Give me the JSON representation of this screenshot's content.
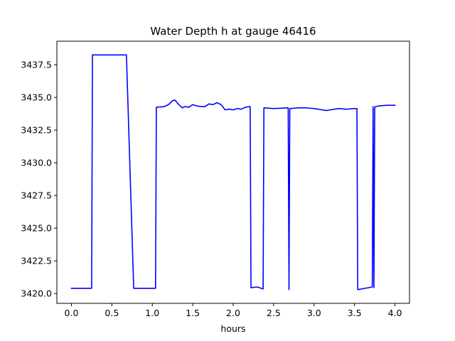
{
  "chart_data": {
    "type": "line",
    "title": "Water Depth h at gauge 46416",
    "xlabel": "hours",
    "ylabel": "",
    "xlim": [
      -0.18,
      4.18
    ],
    "ylim": [
      3419.25,
      3439.3
    ],
    "xticks": [
      0.0,
      0.5,
      1.0,
      1.5,
      2.0,
      2.5,
      3.0,
      3.5,
      4.0
    ],
    "xtick_labels": [
      "0.0",
      "0.5",
      "1.0",
      "1.5",
      "2.0",
      "2.5",
      "3.0",
      "3.5",
      "4.0"
    ],
    "yticks": [
      3420.0,
      3422.5,
      3425.0,
      3427.5,
      3430.0,
      3432.5,
      3435.0,
      3437.5
    ],
    "ytick_labels": [
      "3420.0",
      "3422.5",
      "3425.0",
      "3427.5",
      "3430.0",
      "3432.5",
      "3435.0",
      "3437.5"
    ],
    "grid": false,
    "legend": "none",
    "series": [
      {
        "color": "#0000ff",
        "x": [
          0.0,
          0.25,
          0.26,
          0.68,
          0.77,
          1.04,
          1.05,
          1.15,
          1.2,
          1.25,
          1.28,
          1.32,
          1.37,
          1.4,
          1.45,
          1.5,
          1.55,
          1.6,
          1.65,
          1.7,
          1.75,
          1.8,
          1.85,
          1.9,
          1.95,
          2.0,
          2.05,
          2.1,
          2.15,
          2.21,
          2.22,
          2.3,
          2.37,
          2.38,
          2.5,
          2.68,
          2.69,
          2.7,
          2.8,
          2.9,
          3.0,
          3.1,
          3.15,
          3.2,
          3.3,
          3.4,
          3.5,
          3.53,
          3.54,
          3.72,
          3.73,
          3.74,
          3.75,
          3.76,
          3.8,
          3.9,
          4.0
        ],
        "y": [
          3420.4,
          3420.4,
          3438.25,
          3438.25,
          3420.4,
          3420.4,
          3434.25,
          3434.3,
          3434.45,
          3434.75,
          3434.8,
          3434.5,
          3434.2,
          3434.3,
          3434.25,
          3434.45,
          3434.35,
          3434.3,
          3434.3,
          3434.5,
          3434.45,
          3434.6,
          3434.45,
          3434.05,
          3434.1,
          3434.05,
          3434.15,
          3434.1,
          3434.25,
          3434.3,
          3420.45,
          3420.5,
          3420.35,
          3434.2,
          3434.15,
          3434.2,
          3420.3,
          3434.15,
          3434.2,
          3434.2,
          3434.15,
          3434.05,
          3434.0,
          3434.05,
          3434.15,
          3434.1,
          3434.15,
          3434.15,
          3420.3,
          3420.5,
          3434.3,
          3420.45,
          3434.25,
          3434.3,
          3434.35,
          3434.4,
          3434.4
        ]
      }
    ]
  }
}
